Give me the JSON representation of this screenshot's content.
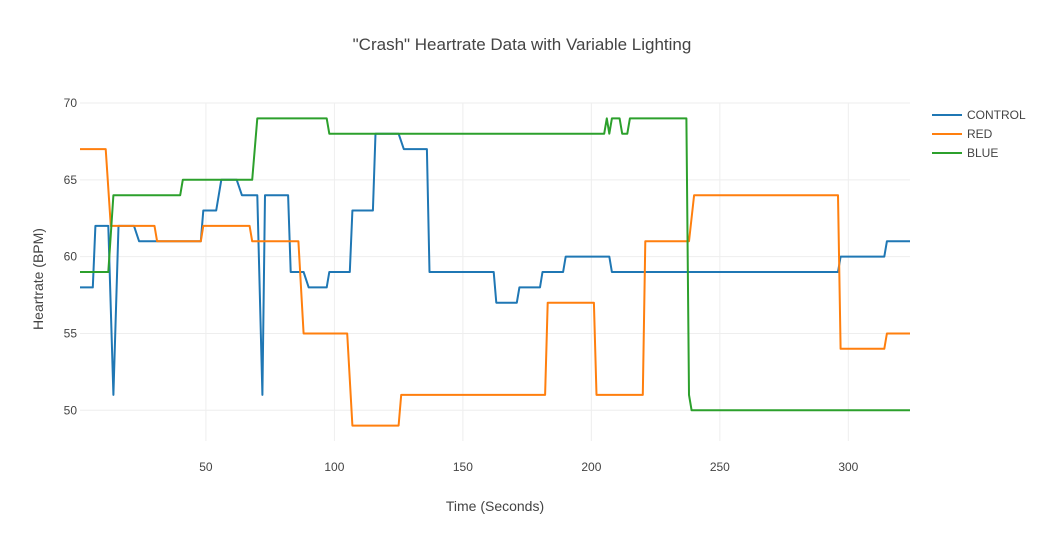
{
  "chart_data": {
    "type": "line",
    "title": "\"Crash\" Heartrate Data with Variable Lighting",
    "xlabel": "Time (Seconds)",
    "ylabel": "Heartrate (BPM)",
    "xlim": [
      1,
      324
    ],
    "ylim": [
      48,
      70
    ],
    "xticks": [
      50,
      100,
      150,
      200,
      250,
      300
    ],
    "yticks": [
      50,
      55,
      60,
      65,
      70
    ],
    "xtick_labels": [
      "50",
      "100",
      "150",
      "200",
      "250",
      "300"
    ],
    "ytick_labels": [
      "50",
      "55",
      "60",
      "65",
      "70"
    ],
    "grid": true,
    "legend_position": "top-right",
    "series": [
      {
        "name": "CONTROL",
        "color": "#1f77b4",
        "points": [
          [
            1,
            58
          ],
          [
            6,
            58
          ],
          [
            7,
            62
          ],
          [
            12,
            62
          ],
          [
            14,
            51
          ],
          [
            16,
            62
          ],
          [
            22,
            62
          ],
          [
            24,
            61
          ],
          [
            30,
            61
          ],
          [
            31,
            61
          ],
          [
            48,
            61
          ],
          [
            49,
            63
          ],
          [
            54,
            63
          ],
          [
            56,
            65
          ],
          [
            62,
            65
          ],
          [
            64,
            64
          ],
          [
            70,
            64
          ],
          [
            72,
            51
          ],
          [
            73,
            64
          ],
          [
            82,
            64
          ],
          [
            83,
            59
          ],
          [
            88,
            59
          ],
          [
            90,
            58
          ],
          [
            97,
            58
          ],
          [
            98,
            59
          ],
          [
            106,
            59
          ],
          [
            107,
            63
          ],
          [
            115,
            63
          ],
          [
            116,
            68
          ],
          [
            125,
            68
          ],
          [
            127,
            67
          ],
          [
            136,
            67
          ],
          [
            137,
            59
          ],
          [
            162,
            59
          ],
          [
            163,
            57
          ],
          [
            171,
            57
          ],
          [
            172,
            58
          ],
          [
            180,
            58
          ],
          [
            181,
            59
          ],
          [
            189,
            59
          ],
          [
            190,
            60
          ],
          [
            207,
            60
          ],
          [
            208,
            59
          ],
          [
            296,
            59
          ],
          [
            297,
            60
          ],
          [
            314,
            60
          ],
          [
            315,
            61
          ],
          [
            324,
            61
          ]
        ]
      },
      {
        "name": "RED",
        "color": "#ff7f0e",
        "points": [
          [
            1,
            67
          ],
          [
            11,
            67
          ],
          [
            13,
            62
          ],
          [
            30,
            62
          ],
          [
            31,
            61
          ],
          [
            48,
            61
          ],
          [
            49,
            62
          ],
          [
            67,
            62
          ],
          [
            68,
            61
          ],
          [
            86,
            61
          ],
          [
            88,
            55
          ],
          [
            105,
            55
          ],
          [
            107,
            49
          ],
          [
            125,
            49
          ],
          [
            126,
            51
          ],
          [
            182,
            51
          ],
          [
            183,
            57
          ],
          [
            201,
            57
          ],
          [
            202,
            51
          ],
          [
            220,
            51
          ],
          [
            221,
            61
          ],
          [
            238,
            61
          ],
          [
            240,
            64
          ],
          [
            296,
            64
          ],
          [
            297,
            54
          ],
          [
            314,
            54
          ],
          [
            315,
            55
          ],
          [
            324,
            55
          ]
        ]
      },
      {
        "name": "BLUE",
        "color": "#2ca02c",
        "points": [
          [
            1,
            59
          ],
          [
            12,
            59
          ],
          [
            14,
            64
          ],
          [
            40,
            64
          ],
          [
            41,
            65
          ],
          [
            68,
            65
          ],
          [
            70,
            69
          ],
          [
            97,
            69
          ],
          [
            98,
            68
          ],
          [
            205,
            68
          ],
          [
            206,
            69
          ],
          [
            207,
            68
          ],
          [
            208,
            69
          ],
          [
            211,
            69
          ],
          [
            212,
            68
          ],
          [
            214,
            68
          ],
          [
            215,
            69
          ],
          [
            237,
            69
          ],
          [
            238,
            51
          ],
          [
            239,
            50
          ],
          [
            324,
            50
          ]
        ]
      }
    ]
  }
}
